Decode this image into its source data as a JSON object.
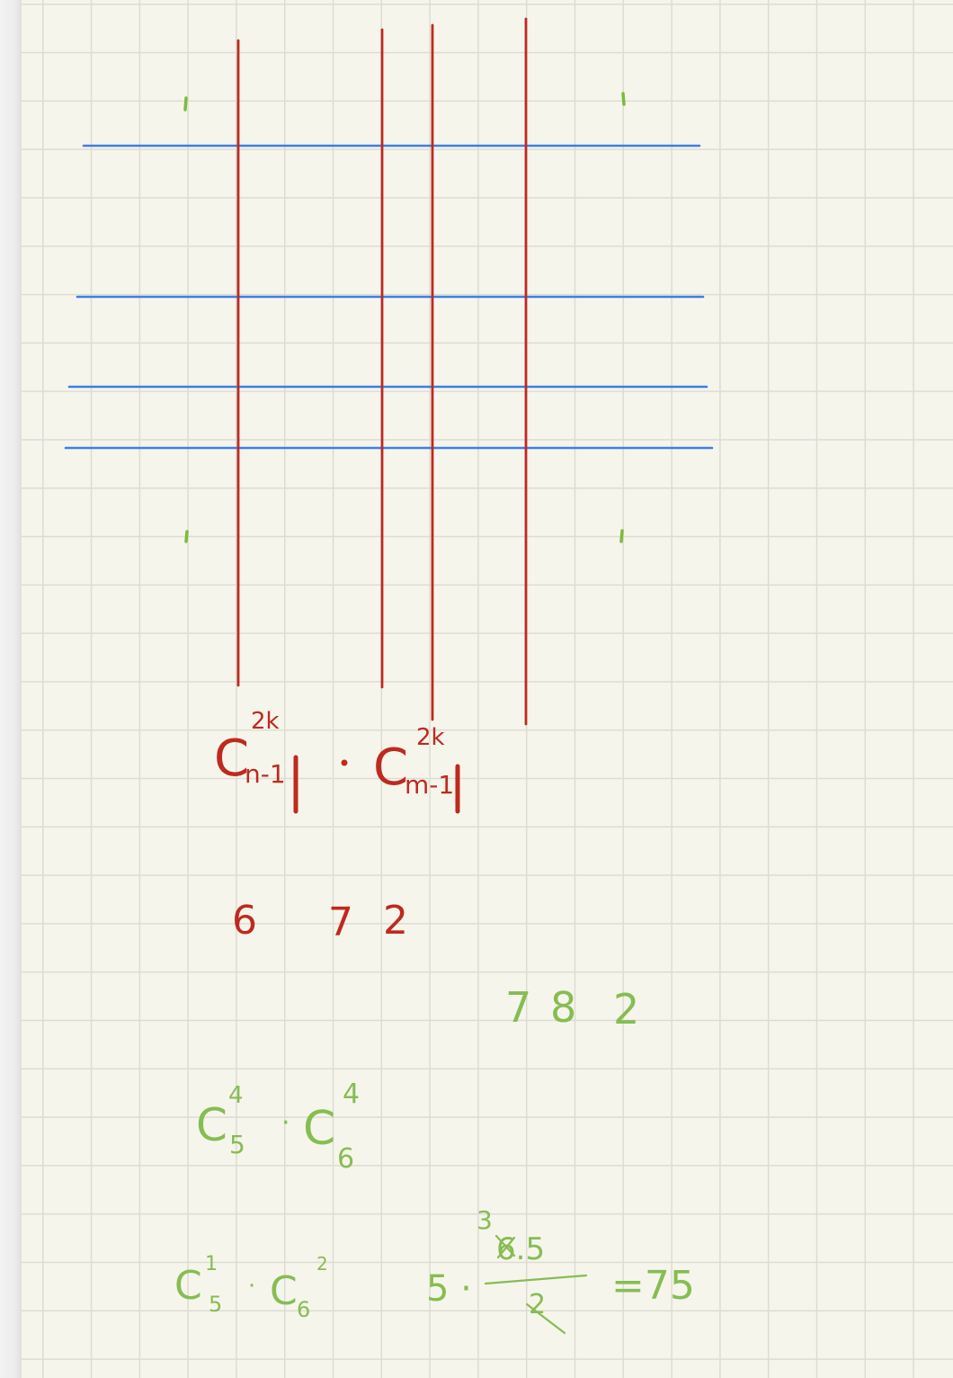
{
  "note": {
    "red_expression": {
      "base_left": "C",
      "sup_left": "2k",
      "sub_left": "n-1",
      "dot": "·",
      "base_right": "C",
      "sup_right": "2k",
      "sub_right": "m-1"
    },
    "red_numbers": [
      "6",
      "7",
      "2"
    ],
    "green_numbers": [
      "7",
      "8",
      "2"
    ],
    "green_expression_1": {
      "base_left": "C",
      "sup_left": "4",
      "sub_left": "5",
      "dot": "·",
      "base_right": "C",
      "sup_right": "4",
      "sub_right": "6"
    },
    "green_expression_2": {
      "base_left": "C",
      "sup_left": "1",
      "sub_left": "5",
      "dot": "·",
      "base_right": "C",
      "sup_right": "2",
      "sub_right": "6"
    },
    "green_calculation": {
      "lead": "5 ·",
      "numerator_cancel": "3",
      "numerator": "6.5",
      "denominator": "2",
      "result": "=75"
    }
  },
  "colors": {
    "paper": "#f6f5ec",
    "grid": "#dcdcd3",
    "blue_ink": "#3d7fe3",
    "red_ink": "#bd2a1e",
    "green_ink": "#86bd52"
  }
}
